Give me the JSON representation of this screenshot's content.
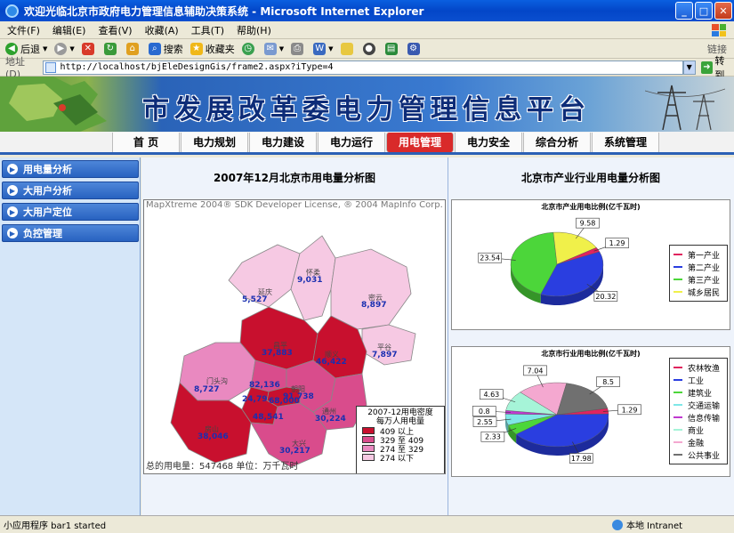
{
  "window": {
    "title": "欢迎光临北京市政府电力管理信息辅助决策系统 - Microsoft Internet Explorer"
  },
  "menu": [
    "文件(F)",
    "编辑(E)",
    "查看(V)",
    "收藏(A)",
    "工具(T)",
    "帮助(H)"
  ],
  "toolbar": {
    "back": "后退",
    "search": "搜索",
    "favorites": "收藏夹",
    "links": "链接"
  },
  "address": {
    "label": "地址(D)",
    "url": "http://localhost/bjEleDesignGis/frame2.aspx?iType=4",
    "go": "转到"
  },
  "banner": {
    "title": "市发展改革委电力管理信息平台"
  },
  "nav": [
    "首 页",
    "电力规划",
    "电力建设",
    "电力运行",
    "用电管理",
    "电力安全",
    "综合分析",
    "系统管理"
  ],
  "nav_active": 4,
  "sidebar": [
    "用电量分析",
    "大用户分析",
    "大用户定位",
    "负控管理"
  ],
  "left_panel": {
    "title": "2007年12月北京市用电量分析图",
    "credit": "MapXtreme 2004® SDK Developer License, ® 2004 MapInfo Corp.",
    "footer": "总的用电量：547468 单位：万千瓦时",
    "regions": [
      {
        "name": "延庆",
        "value": "5,527"
      },
      {
        "name": "怀柔",
        "value": "9,031"
      },
      {
        "name": "密云",
        "value": "8,897"
      },
      {
        "name": "平谷",
        "value": "7,897"
      },
      {
        "name": "昌平",
        "value": "37,883"
      },
      {
        "name": "顺义",
        "value": "46,422"
      },
      {
        "name": "门头沟",
        "value": "8,727"
      },
      {
        "name": "海淀",
        "value": "82,136"
      },
      {
        "name": "西城",
        "value": "24,79"
      },
      {
        "name": "东城",
        "value": "68,000"
      },
      {
        "name": "朝阳",
        "value": "91,738"
      },
      {
        "name": "丰台",
        "value": "48,541"
      },
      {
        "name": "通州",
        "value": "30,224"
      },
      {
        "name": "房山",
        "value": "38,046"
      },
      {
        "name": "大兴",
        "value": "30,217"
      }
    ],
    "legend": {
      "title1": "2007-12用电密度",
      "title2": "每万人用电量",
      "items": [
        {
          "label": "409 以上",
          "color": "#c8102e"
        },
        {
          "label": "329 至 409",
          "color": "#d94c8c"
        },
        {
          "label": "274 至 329",
          "color": "#e989c0"
        },
        {
          "label": "274 以下",
          "color": "#f6c9e3"
        }
      ]
    }
  },
  "right_panel": {
    "title": "北京市产业行业用电量分析图",
    "chart1_title": "北京市产业用电比例(亿千瓦时)",
    "chart2_title": "北京市行业用电比例(亿千瓦时)"
  },
  "chart_data": [
    {
      "type": "pie",
      "title": "北京市产业用电比例(亿千瓦时)",
      "categories": [
        "第一产业",
        "第二产业",
        "第三产业",
        "城乡居民"
      ],
      "values": [
        1.29,
        20.32,
        23.54,
        9.58
      ],
      "colors": [
        "#e0245e",
        "#2a3ee0",
        "#4cd63a",
        "#f0f04a"
      ]
    },
    {
      "type": "pie",
      "title": "北京市行业用电比例(亿千瓦时)",
      "categories": [
        "农林牧渔",
        "工业",
        "建筑业",
        "交通运输",
        "信息传输",
        "商业",
        "金融",
        "公共事业"
      ],
      "values": [
        1.29,
        17.98,
        2.33,
        2.55,
        0.8,
        4.63,
        7.04,
        8.5
      ],
      "colors": [
        "#e0245e",
        "#2a3ee0",
        "#4cd63a",
        "#7fe7e7",
        "#c03ad0",
        "#a6f4d8",
        "#f4a8d0",
        "#707070"
      ]
    }
  ],
  "status": {
    "left": "小应用程序 bar1 started",
    "zone": "本地 Intranet"
  }
}
